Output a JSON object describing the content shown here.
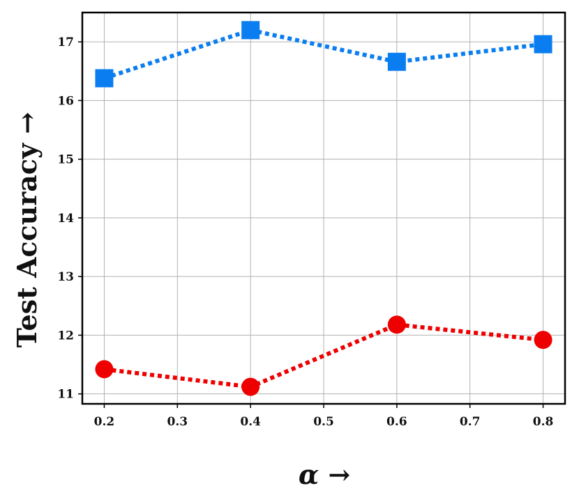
{
  "chart_data": {
    "type": "line",
    "title": "",
    "xlabel": "α →",
    "ylabel": "Test Accuracy →",
    "x": [
      0.2,
      0.4,
      0.6,
      0.8
    ],
    "xlim": [
      0.17,
      0.83
    ],
    "ylim": [
      10.83,
      17.5
    ],
    "xticks": [
      0.2,
      0.3,
      0.4,
      0.5,
      0.6,
      0.7,
      0.8
    ],
    "xtick_labels": [
      "0.2",
      "0.3",
      "0.4",
      "0.5",
      "0.6",
      "0.7",
      "0.8"
    ],
    "yticks": [
      11,
      12,
      13,
      14,
      15,
      16,
      17
    ],
    "ytick_labels": [
      "11",
      "12",
      "13",
      "14",
      "15",
      "16",
      "17"
    ],
    "grid": true,
    "legend": "none",
    "series": [
      {
        "values": [
          16.38,
          17.2,
          16.66,
          16.96
        ],
        "color": "#0a7ef0",
        "marker": "square",
        "linestyle": "dotted"
      },
      {
        "values": [
          11.42,
          11.12,
          12.18,
          11.92
        ],
        "color": "#ee0000",
        "marker": "circle",
        "linestyle": "dotted"
      }
    ]
  }
}
